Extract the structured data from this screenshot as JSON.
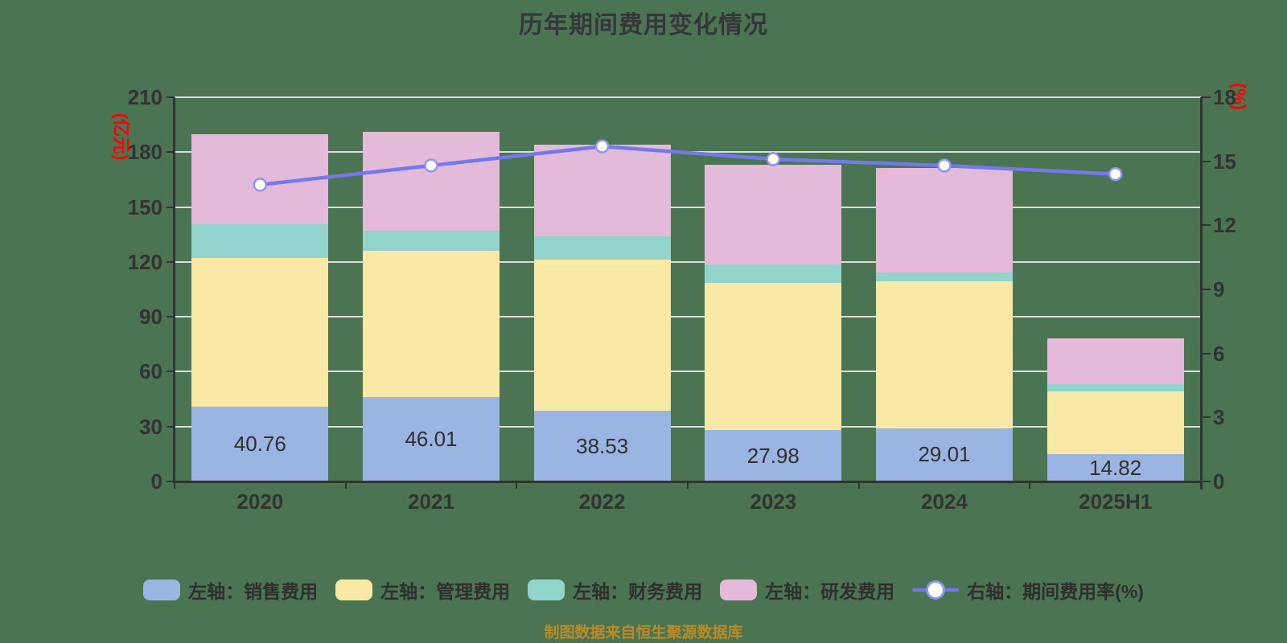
{
  "title": "历年期间费用变化情况",
  "source_note": "制图数据来自恒生聚源数据库",
  "left_axis": {
    "unit": "(亿元)",
    "min": 0,
    "max": 210,
    "step": 30,
    "tick_labels": [
      "0",
      "30",
      "60",
      "90",
      "120",
      "150",
      "180",
      "210"
    ]
  },
  "right_axis": {
    "unit": "(%)",
    "min": 0,
    "max": 18,
    "step": 3,
    "tick_labels": [
      "0",
      "3",
      "6",
      "9",
      "12",
      "15",
      "18"
    ]
  },
  "bar_value_labels": [
    "40.76",
    "46.01",
    "38.53",
    "27.98",
    "29.01",
    "14.82"
  ],
  "chart_data": {
    "type": "bar",
    "stacked": true,
    "title": "历年期间费用变化情况",
    "categories": [
      "2020",
      "2021",
      "2022",
      "2023",
      "2024",
      "2025H1"
    ],
    "series": [
      {
        "key": "sales",
        "name": "左轴：销售费用",
        "type": "bar",
        "axis": "left",
        "color": "#9bb5e2",
        "values": [
          40.76,
          46.01,
          38.53,
          27.98,
          29.01,
          14.82
        ]
      },
      {
        "key": "admin",
        "name": "左轴：管理费用",
        "type": "bar",
        "axis": "left",
        "color": "#f8e9a6",
        "values": [
          81.5,
          79.9,
          82.8,
          80.6,
          80.2,
          34.4
        ]
      },
      {
        "key": "finance",
        "name": "左轴：财务费用",
        "type": "bar",
        "axis": "left",
        "color": "#92d4cc",
        "values": [
          18.3,
          11.0,
          12.7,
          10.1,
          5.2,
          3.8
        ]
      },
      {
        "key": "rd",
        "name": "左轴：研发费用",
        "type": "bar",
        "axis": "left",
        "color": "#e4bada",
        "values": [
          49.4,
          54.2,
          50.1,
          54.3,
          57.0,
          25.2
        ]
      },
      {
        "key": "rate",
        "name": "右轴：期间费用率(%)",
        "type": "line",
        "axis": "right",
        "color": "#7478ea",
        "values": [
          13.9,
          14.8,
          15.7,
          15.1,
          14.8,
          14.4
        ]
      }
    ],
    "ylim_left": [
      0,
      210
    ],
    "ylim_right": [
      0,
      18
    ],
    "grid": true,
    "legend_position": "bottom",
    "bar_totals_approx": [
      190,
      191,
      184,
      173,
      171,
      78
    ]
  },
  "colors": {
    "background": "#4a7452",
    "title_text": "#35373c",
    "axis_line": "#333333",
    "tick_text": "#333333",
    "grid_line": "#dcdcdc",
    "unit_text": "#ff0000",
    "bar_label_text": "#2f2f2f",
    "line": "#7478ea",
    "marker_fill": "#ffffff",
    "marker_ring": "#9193f0",
    "source_text": "#bd8b25"
  }
}
